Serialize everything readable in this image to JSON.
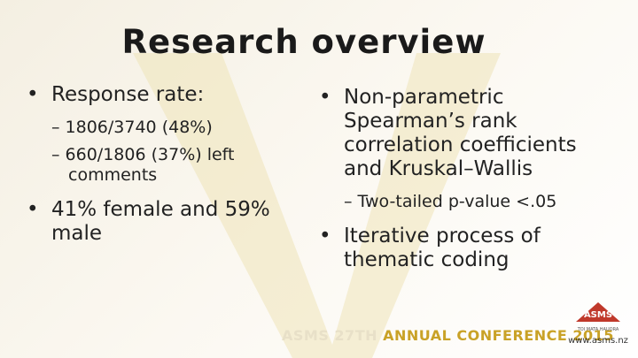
{
  "title": "Research overview",
  "left": {
    "bullets": [
      {
        "text": "Response rate:",
        "sub": [
          "– 1806/3740 (48%)",
          "– 660/1806 (37%) left comments"
        ]
      },
      {
        "text": "41% female and 59% male",
        "sub": []
      }
    ]
  },
  "right": {
    "bullets": [
      {
        "text": "Non-parametric Spearman’s rank correlation coefficients and Kruskal–Wallis",
        "sub": [
          "– Two-tailed p-value <.05"
        ]
      },
      {
        "text": "Iterative process of thematic coding",
        "sub": []
      }
    ]
  },
  "footer": {
    "part1": "ASMS 27TH",
    "part2": "ANNUAL CONFERENCE 2015"
  },
  "logo": {
    "name": "ASMS",
    "tagline": "TOI MATA HAUORA",
    "url": "www.asms.nz"
  }
}
